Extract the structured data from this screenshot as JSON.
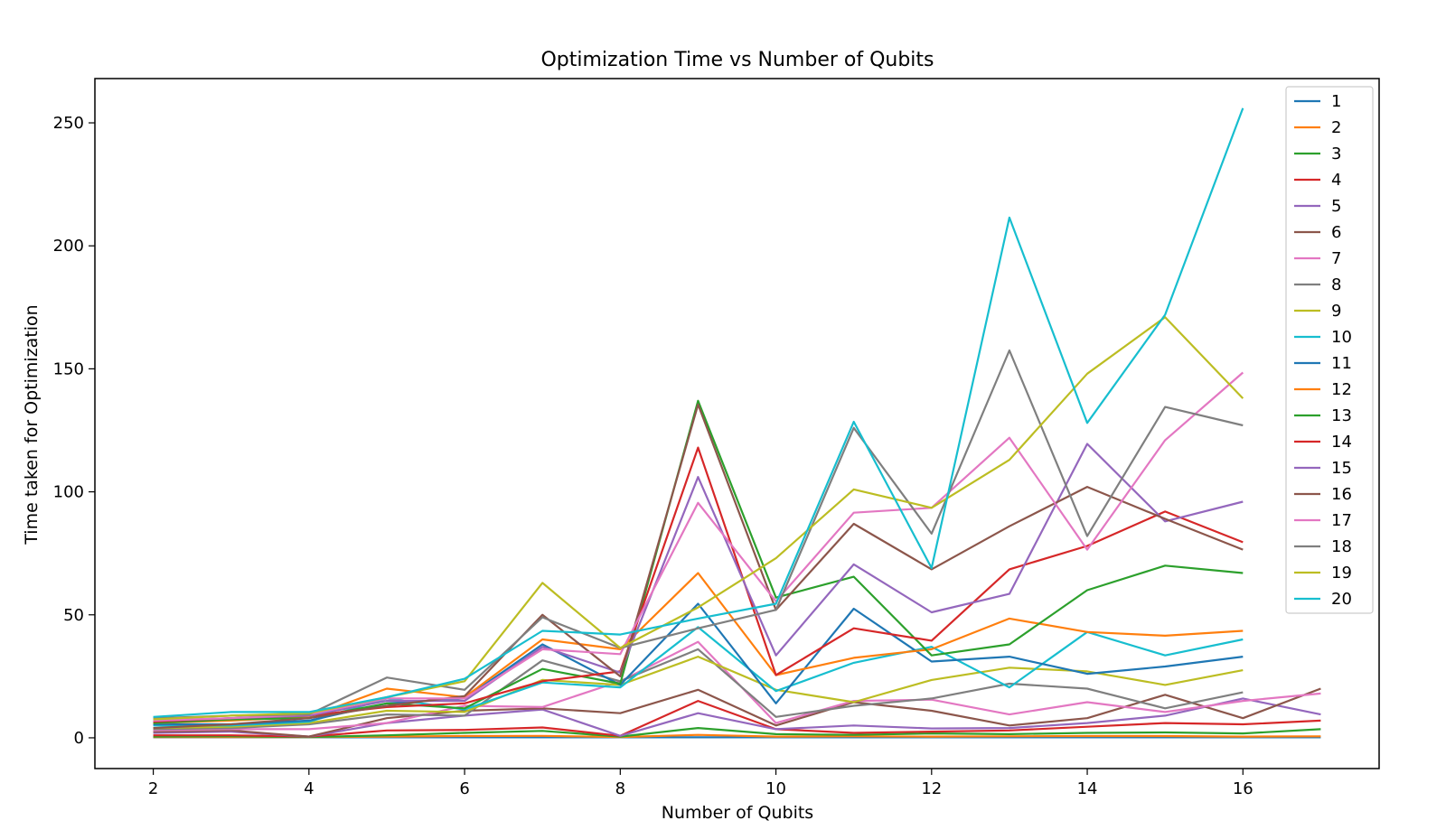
{
  "chart_data": {
    "type": "line",
    "title": "Optimization Time vs Number of Qubits",
    "xlabel": "Number of Qubits",
    "ylabel": "Time taken for Optimization",
    "xlim": [
      1.25,
      17.75
    ],
    "ylim": [
      -12.5,
      268
    ],
    "xticks": [
      2,
      4,
      6,
      8,
      10,
      12,
      14,
      16
    ],
    "yticks": [
      0,
      50,
      100,
      150,
      200,
      250
    ],
    "grid": false,
    "legend_position": "top-right",
    "x": [
      2,
      3,
      4,
      5,
      6,
      7,
      8,
      9,
      10,
      11,
      12,
      13,
      14,
      15,
      16,
      17
    ],
    "series": [
      {
        "name": "1",
        "color": "#1f77b4",
        "values": [
          0.2,
          0.2,
          0.2,
          0.2,
          0.2,
          0.2,
          0.2,
          0.2,
          0.2,
          0.2,
          0.2,
          0.2,
          0.2,
          0.2,
          0.2,
          0.2
        ]
      },
      {
        "name": "2",
        "color": "#ff7f0e",
        "values": [
          0.3,
          0.3,
          0.3,
          0.5,
          0.7,
          0.8,
          0.3,
          1.2,
          0.5,
          0.6,
          0.5,
          0.6,
          0.7,
          0.7,
          0.5,
          0.6
        ]
      },
      {
        "name": "3",
        "color": "#2ca02c",
        "values": [
          0.5,
          0.6,
          0.3,
          1.0,
          2.0,
          2.8,
          0.5,
          4.0,
          1.5,
          1.2,
          1.8,
          1.5,
          2.0,
          2.2,
          1.8,
          3.5
        ]
      },
      {
        "name": "4",
        "color": "#d62728",
        "values": [
          1.0,
          1.0,
          0.5,
          3.0,
          3.2,
          4.2,
          0.8,
          15.0,
          3.5,
          2.0,
          2.5,
          3.0,
          4.5,
          6.0,
          5.5,
          7.0
        ]
      },
      {
        "name": "5",
        "color": "#9467bd",
        "values": [
          2.0,
          2.5,
          0.5,
          6.0,
          9.0,
          11.5,
          0.8,
          10.0,
          3.5,
          5.0,
          3.8,
          4.0,
          6.0,
          9.0,
          16.0,
          9.5
        ]
      },
      {
        "name": "6",
        "color": "#8c564b",
        "values": [
          2.5,
          3.0,
          0.5,
          8.0,
          11.0,
          12.0,
          10.0,
          19.5,
          5.0,
          14.5,
          11.0,
          5.0,
          8.0,
          17.5,
          8.0,
          20.0
        ]
      },
      {
        "name": "7",
        "color": "#e377c2",
        "values": [
          3.0,
          3.5,
          3.5,
          6.0,
          13.0,
          12.5,
          23.0,
          39.0,
          6.0,
          15.0,
          15.5,
          9.5,
          14.5,
          10.5,
          15.0,
          18.0
        ]
      },
      {
        "name": "8",
        "color": "#7f7f7f",
        "values": [
          3.5,
          4.0,
          5.5,
          9.5,
          9.0,
          31.5,
          23.0,
          36.0,
          8.5,
          13.0,
          16.0,
          22.0,
          20.0,
          12.0,
          18.5,
          null
        ]
      },
      {
        "name": "9",
        "color": "#bcbd22",
        "values": [
          4.0,
          4.5,
          6.0,
          11.0,
          10.5,
          23.5,
          21.5,
          33.0,
          19.5,
          14.5,
          23.5,
          28.5,
          27.0,
          21.5,
          27.5,
          null
        ]
      },
      {
        "name": "10",
        "color": "#17becf",
        "values": [
          5.0,
          5.0,
          6.5,
          16.0,
          11.5,
          22.5,
          20.5,
          45.0,
          19.0,
          30.5,
          37.0,
          20.5,
          43.0,
          33.5,
          40.0,
          null
        ]
      },
      {
        "name": "11",
        "color": "#1f77b4",
        "values": [
          5.5,
          5.5,
          7.0,
          14.0,
          16.0,
          38.0,
          21.5,
          54.5,
          14.0,
          52.5,
          31.0,
          33.0,
          26.0,
          29.0,
          33.0,
          null
        ]
      },
      {
        "name": "12",
        "color": "#ff7f0e",
        "values": [
          6.0,
          7.0,
          8.5,
          20.0,
          16.5,
          40.0,
          36.0,
          67.0,
          25.5,
          32.5,
          36.0,
          48.5,
          43.0,
          41.5,
          43.5,
          null
        ]
      },
      {
        "name": "13",
        "color": "#2ca02c",
        "values": [
          6.0,
          7.5,
          8.0,
          14.0,
          12.0,
          28.0,
          22.0,
          137.0,
          57.0,
          65.5,
          33.5,
          38.0,
          60.0,
          70.0,
          67.0,
          null
        ]
      },
      {
        "name": "14",
        "color": "#d62728",
        "values": [
          6.5,
          8.0,
          9.0,
          12.5,
          14.0,
          23.0,
          27.0,
          118.0,
          25.5,
          44.5,
          39.5,
          68.5,
          78.0,
          92.0,
          79.5,
          null
        ]
      },
      {
        "name": "15",
        "color": "#9467bd",
        "values": [
          7.0,
          8.0,
          9.0,
          15.0,
          15.0,
          37.0,
          26.5,
          106.0,
          33.5,
          70.5,
          51.0,
          58.5,
          119.5,
          88.0,
          96.0,
          null
        ]
      },
      {
        "name": "16",
        "color": "#8c564b",
        "values": [
          4.0,
          5.5,
          8.0,
          13.0,
          17.0,
          50.0,
          25.0,
          135.5,
          52.0,
          87.0,
          68.5,
          86.0,
          102.0,
          89.0,
          76.5,
          null
        ]
      },
      {
        "name": "17",
        "color": "#e377c2",
        "values": [
          7.0,
          8.0,
          9.5,
          16.0,
          16.0,
          36.0,
          34.0,
          95.5,
          55.5,
          91.5,
          93.5,
          122.0,
          76.5,
          121.0,
          148.5,
          null
        ]
      },
      {
        "name": "18",
        "color": "#7f7f7f",
        "values": [
          8.0,
          9.0,
          9.5,
          24.5,
          19.5,
          49.0,
          36.5,
          44.5,
          52.0,
          126.0,
          83.0,
          157.5,
          82.0,
          134.5,
          127.0,
          null
        ]
      },
      {
        "name": "19",
        "color": "#bcbd22",
        "values": [
          7.5,
          9.0,
          10.0,
          16.5,
          23.0,
          63.0,
          36.5,
          53.0,
          73.0,
          101.0,
          93.5,
          113.0,
          148.0,
          171.0,
          138.0,
          null
        ]
      },
      {
        "name": "20",
        "color": "#17becf",
        "values": [
          8.5,
          10.5,
          10.5,
          16.5,
          24.0,
          43.5,
          42.0,
          48.5,
          54.5,
          128.5,
          69.0,
          211.5,
          128.0,
          172.0,
          256.0,
          null
        ]
      }
    ]
  }
}
